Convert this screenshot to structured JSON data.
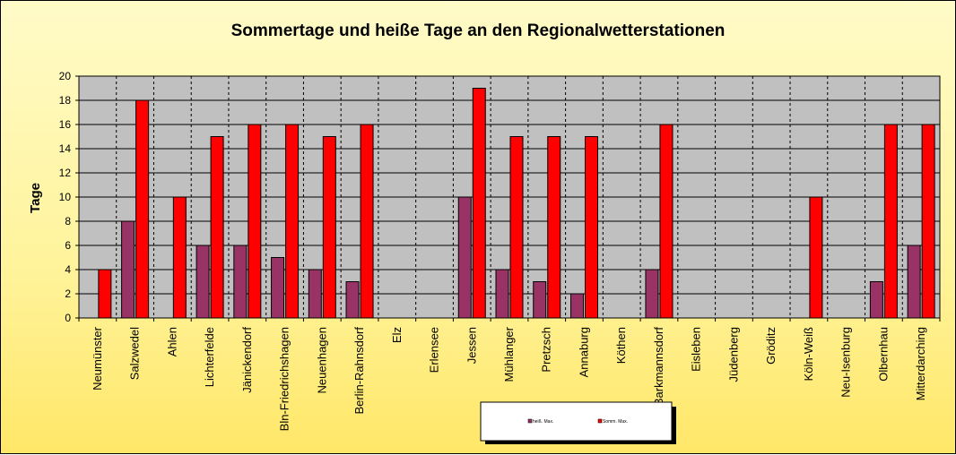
{
  "chart_data": {
    "type": "bar",
    "title": "Sommertage und heiße Tage an den Regionalwetterstationen",
    "ylabel": "Tage",
    "xlabel": "",
    "ylim": [
      0,
      20
    ],
    "yticks": [
      0,
      2,
      4,
      6,
      8,
      10,
      12,
      14,
      16,
      18,
      20
    ],
    "grid": true,
    "legend_position": "bottom",
    "categories": [
      "Neumünster",
      "Salzwedel",
      "Ahlen",
      "Lichterfelde",
      "Jänickendorf",
      "Bln-Friedrichshagen",
      "Neuenhagen",
      "Berlin-Rahnsdorf",
      "Elz",
      "Erlensee",
      "Jessen",
      "Mühlanger",
      "Pretzsch",
      "Annaburg",
      "Köthen",
      "Barkmannsdorf",
      "Eisleben",
      "Jüdenberg",
      "Gröditz",
      "Köln-Weiß",
      "Neu-Isenburg",
      "Olbernhau",
      "Mitterdarching"
    ],
    "series": [
      {
        "name": "heiß. Max.",
        "color": "#993366",
        "values": [
          0,
          8,
          0,
          6,
          6,
          5,
          4,
          3,
          0,
          0,
          10,
          4,
          3,
          2,
          0,
          4,
          0,
          0,
          0,
          0,
          0,
          3,
          6
        ]
      },
      {
        "name": "Somm. Max.",
        "color": "#ff0000",
        "values": [
          4,
          18,
          10,
          15,
          16,
          16,
          15,
          16,
          0,
          0,
          19,
          15,
          15,
          15,
          0,
          16,
          0,
          0,
          0,
          10,
          0,
          16,
          16
        ]
      }
    ],
    "plot_background": "#c0c0c0"
  }
}
